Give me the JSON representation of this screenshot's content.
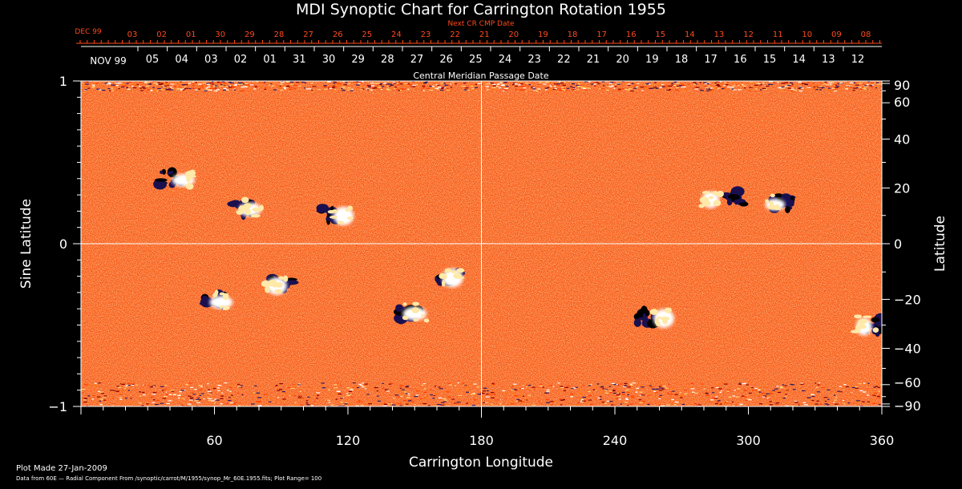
{
  "chart_data": {
    "type": "heatmap",
    "title": "MDI Synoptic Chart for Carrington Rotation 1955",
    "xlabel": "Carrington Longitude",
    "ylabel_left": "Sine Latitude",
    "ylabel_right": "Latitude",
    "xlim": [
      0,
      360
    ],
    "ylim": [
      -1,
      1
    ],
    "x_ticks": [
      60,
      120,
      180,
      240,
      300,
      360
    ],
    "y_left_ticks": [
      -1,
      0,
      1
    ],
    "y_right_ticks": [
      90,
      60,
      40,
      20,
      0,
      -20,
      -40,
      -60,
      -90
    ],
    "grid_lines": {
      "longitude": 180,
      "sine_latitude": 0
    },
    "plot_range": 100,
    "colormap": [
      "#2a1a66",
      "#8a0000",
      "#ff3d00",
      "#ff7a12",
      "#ffd27a",
      "#ffffff"
    ],
    "background_color": "#ff5a10",
    "top_axis_next": {
      "label": "Next CR CMP Date",
      "month": "DEC 99",
      "days": [
        "03",
        "02",
        "01",
        "30",
        "29",
        "28",
        "27",
        "26",
        "25",
        "24",
        "23",
        "22",
        "21",
        "20",
        "19",
        "18",
        "17",
        "16",
        "15",
        "14",
        "13",
        "12",
        "11",
        "10",
        "09",
        "08"
      ],
      "color": "#ff4a1a"
    },
    "top_axis_cmp": {
      "label": "Central Meridian Passage Date",
      "month": "NOV 99",
      "days": [
        "05",
        "04",
        "03",
        "02",
        "01",
        "31",
        "30",
        "29",
        "28",
        "27",
        "26",
        "25",
        "24",
        "23",
        "22",
        "21",
        "20",
        "19",
        "18",
        "17",
        "16",
        "15",
        "14",
        "13",
        "12"
      ]
    },
    "active_regions": [
      {
        "lon": 40,
        "sinlat": 0.4,
        "positive_lon": 46
      },
      {
        "lon": 73,
        "sinlat": 0.22,
        "positive_lon": 76
      },
      {
        "lon": 112,
        "sinlat": 0.18,
        "positive_lon": 118
      },
      {
        "lon": 295,
        "sinlat": 0.28,
        "positive_lon": 283
      },
      {
        "lon": 315,
        "sinlat": 0.25,
        "positive_lon": 312
      },
      {
        "lon": 60,
        "sinlat": -0.35,
        "positive_lon": 63
      },
      {
        "lon": 90,
        "sinlat": -0.25,
        "positive_lon": 88
      },
      {
        "lon": 148,
        "sinlat": -0.42,
        "positive_lon": 150
      },
      {
        "lon": 165,
        "sinlat": -0.2,
        "positive_lon": 167
      },
      {
        "lon": 255,
        "sinlat": -0.45,
        "positive_lon": 262
      },
      {
        "lon": 357,
        "sinlat": -0.5,
        "positive_lon": 352
      }
    ]
  },
  "footer": {
    "plot_made": "Plot Made 27-Jan-2009",
    "data_source": "Data from 60E — Radial Component From /synoptic/carrot/M/1955/synop_Mr_60E.1955.fits; Plot Range= 100"
  }
}
